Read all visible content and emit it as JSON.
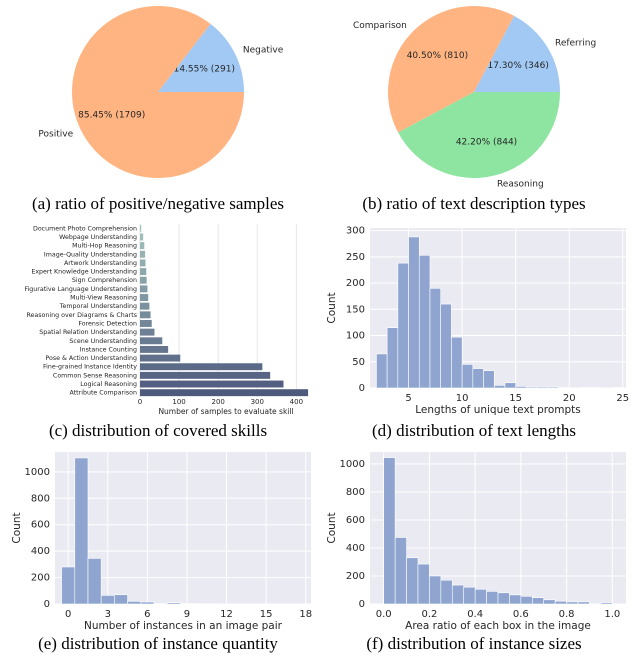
{
  "chart_data": [
    {
      "type": "pie",
      "caption": "(a) ratio of positive/negative samples",
      "categories": [
        "Negative",
        "Positive"
      ],
      "values": [
        14.55,
        85.45
      ],
      "value_labels": [
        "14.55%  (291)",
        "85.45%  (1709)"
      ],
      "colors": [
        "#a1c9f4",
        "#ffb482"
      ]
    },
    {
      "type": "pie",
      "caption": "(b) ratio of text description types",
      "categories": [
        "Referring",
        "Comparison",
        "Reasoning"
      ],
      "values": [
        17.3,
        40.5,
        42.2
      ],
      "value_labels": [
        "17.30%  (346)",
        "40.50%  (810)",
        "42.20%  (844)"
      ],
      "colors": [
        "#a1c9f4",
        "#ffb482",
        "#8de5a1"
      ]
    },
    {
      "type": "bar",
      "orientation": "horizontal",
      "caption": "(c) distribution of covered skills",
      "xlabel": "Number of samples to evaluate skill",
      "categories": [
        "Document Photo Comprehension",
        "Webpage Understanding",
        "Multi-Hop Reasoning",
        "Image-Quality Understanding",
        "Artwork Understanding",
        "Expert Knowledge Understanding",
        "Sign Comprehension",
        "Figurative Language Understanding",
        "Multi-View Reasoning",
        "Temporal Understanding",
        "Reasoning over Diagrams & Charts",
        "Forensic Detection",
        "Spatial Relation Understanding",
        "Scene Understanding",
        "Instance Counting",
        "Pose & Action Understanding",
        "Fine-grained Instance Identity",
        "Common Sense Reasoning",
        "Logical Reasoning",
        "Attribute Comparison"
      ],
      "values": [
        3,
        8,
        11,
        13,
        14,
        16,
        17,
        19,
        21,
        24,
        27,
        30,
        37,
        57,
        72,
        103,
        313,
        333,
        367,
        430
      ],
      "colors": [
        "#a3c4bc",
        "#9fbeb9",
        "#9ab8b5",
        "#96b3b2",
        "#91adaf",
        "#8da8ab",
        "#88a2a8",
        "#849ca5",
        "#7f97a1",
        "#7b919e",
        "#768c9b",
        "#728697",
        "#6d8094",
        "#697b91",
        "#64758d",
        "#60708a",
        "#5b6a87",
        "#576483",
        "#525f80",
        "#4e5a7c"
      ],
      "xlim": [
        0,
        440
      ],
      "xticks": [
        0,
        100,
        200,
        300,
        400
      ],
      "grid": true
    },
    {
      "type": "histogram",
      "caption": "(d) distribution of text lengths",
      "xlabel": "Lengths of unique text prompts",
      "ylabel": "Count",
      "bins": [
        2,
        3,
        4,
        5,
        6,
        7,
        8,
        9,
        10,
        11,
        12,
        13,
        14,
        15,
        16,
        17,
        18,
        19,
        20,
        21,
        22,
        23,
        24,
        25
      ],
      "counts": [
        65,
        115,
        238,
        288,
        253,
        190,
        160,
        97,
        45,
        37,
        33,
        5,
        10,
        3,
        2,
        2,
        2,
        1,
        0,
        1,
        1,
        0,
        1
      ],
      "color": "#8fa5d0",
      "xlim": [
        1.4,
        25.3
      ],
      "ylim": [
        0,
        305
      ],
      "xticks": [
        5,
        10,
        15,
        20,
        25
      ],
      "yticks": [
        0,
        50,
        100,
        150,
        200,
        250,
        300
      ],
      "grid": true
    },
    {
      "type": "histogram",
      "caption": "(e) distribution of instance quantity",
      "xlabel": "Number of instances in an image pair",
      "ylabel": "Count",
      "bins": [
        -0.5,
        0.5,
        1.5,
        2.5,
        3.5,
        4.5,
        5.5,
        6.5,
        7.5,
        8.5,
        9.5,
        10.5,
        11.5,
        12.5,
        13.5,
        14.5,
        15.5,
        16.5,
        17.5
      ],
      "counts": [
        280,
        1105,
        345,
        65,
        70,
        20,
        15,
        5,
        10,
        3,
        2,
        2,
        1,
        1,
        1,
        1,
        0,
        1
      ],
      "color": "#8fa5d0",
      "xlim": [
        -1,
        18.4
      ],
      "ylim": [
        0,
        1150
      ],
      "xticks": [
        0,
        3,
        6,
        9,
        12,
        15,
        18
      ],
      "yticks": [
        0,
        200,
        400,
        600,
        800,
        1000
      ],
      "grid": true
    },
    {
      "type": "histogram",
      "caption": "(f) distribution of instance sizes",
      "xlabel": "Area ratio of each box in the image",
      "ylabel": "Count",
      "bins": [
        0,
        0.05,
        0.1,
        0.15,
        0.2,
        0.25,
        0.3,
        0.35,
        0.4,
        0.45,
        0.5,
        0.55,
        0.6,
        0.65,
        0.7,
        0.75,
        0.8,
        0.85,
        0.9,
        0.95,
        1.0
      ],
      "counts": [
        1045,
        475,
        330,
        285,
        200,
        170,
        135,
        120,
        105,
        90,
        80,
        65,
        55,
        45,
        30,
        20,
        15,
        15,
        5,
        10
      ],
      "color": "#8fa5d0",
      "xlim": [
        -0.06,
        1.06
      ],
      "ylim": [
        0,
        1085
      ],
      "xticks": [
        {
          "value": 0,
          "label": "0.0"
        },
        0.2,
        0.4,
        0.6,
        0.8,
        {
          "value": 1,
          "label": "1.0"
        }
      ],
      "yticks": [
        0,
        200,
        400,
        600,
        800,
        1000
      ],
      "grid": true
    }
  ]
}
